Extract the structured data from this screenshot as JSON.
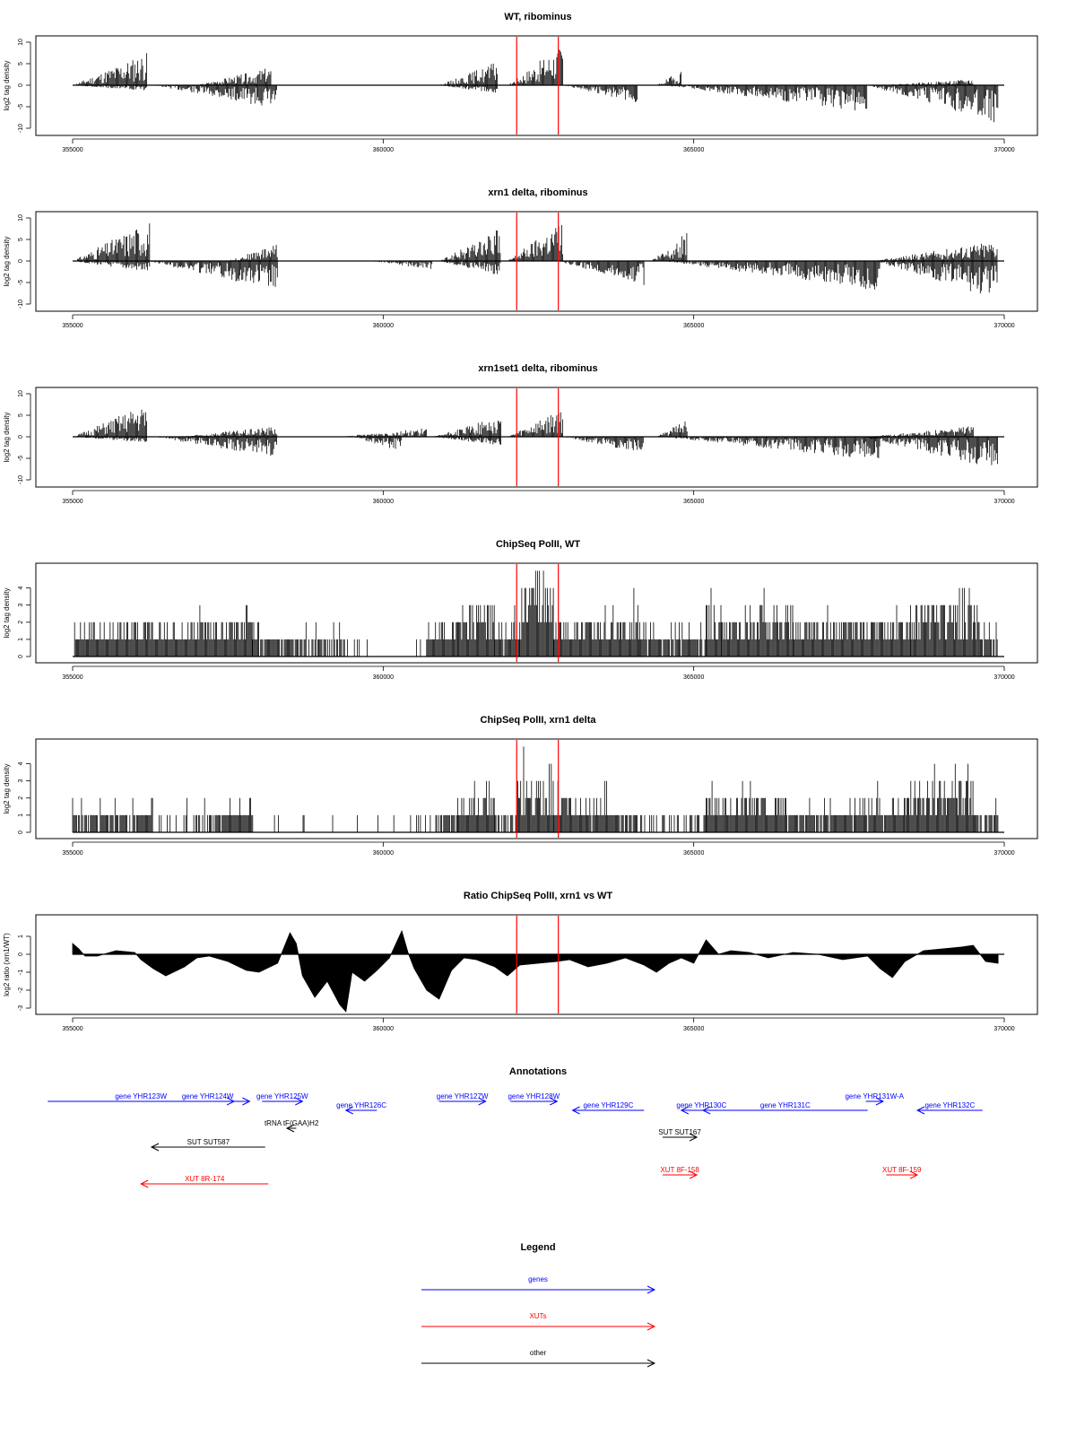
{
  "x_axis": {
    "range": [
      355000,
      370000
    ],
    "ticks": [
      355000,
      360000,
      365000,
      370000
    ]
  },
  "chart_data": [
    {
      "type": "bar",
      "title": "WT, ribominus",
      "ylabel": "log2 tag density",
      "ylim": [
        -10,
        10
      ],
      "yticks": [
        -10,
        -5,
        0,
        5,
        10
      ],
      "grid": false,
      "marker_lines_x": [
        362150,
        362820
      ],
      "marker_color": "#ff0000",
      "segments": [
        {
          "x": [
            355000,
            356200
          ],
          "y": [
            0,
            5.5
          ],
          "seed": 11
        },
        {
          "x": [
            355000,
            356200
          ],
          "y": [
            0,
            -1
          ],
          "seed": 12
        },
        {
          "x": [
            356300,
            358300
          ],
          "y": [
            0,
            -4
          ],
          "seed": 13
        },
        {
          "x": [
            357000,
            358200
          ],
          "y": [
            0,
            3
          ],
          "seed": 14
        },
        {
          "x": [
            360900,
            361850
          ],
          "y": [
            0,
            4
          ],
          "seed": 15
        },
        {
          "x": [
            360900,
            361850
          ],
          "y": [
            0,
            -1.5
          ],
          "seed": 16
        },
        {
          "x": [
            362000,
            362900
          ],
          "y": [
            0,
            7
          ],
          "seed": 17
        },
        {
          "x": [
            362900,
            364100
          ],
          "y": [
            0,
            -3
          ],
          "seed": 18
        },
        {
          "x": [
            364400,
            364800
          ],
          "y": [
            0,
            2.5
          ],
          "seed": 19
        },
        {
          "x": [
            364500,
            367800
          ],
          "y": [
            0,
            -4.5
          ],
          "seed": 20
        },
        {
          "x": [
            367800,
            369900
          ],
          "y": [
            0,
            -6.5
          ],
          "seed": 21
        },
        {
          "x": [
            368000,
            369500
          ],
          "y": [
            0,
            1
          ],
          "seed": 22
        }
      ]
    },
    {
      "type": "bar",
      "title": "xrn1 delta, ribominus",
      "ylabel": "log2 tag density",
      "ylim": [
        -10,
        10
      ],
      "yticks": [
        -10,
        -5,
        0,
        5,
        10
      ],
      "grid": false,
      "marker_lines_x": [
        362150,
        362820
      ],
      "marker_color": "#ff0000",
      "segments": [
        {
          "x": [
            355000,
            356250
          ],
          "y": [
            0,
            7
          ],
          "seed": 31
        },
        {
          "x": [
            355000,
            356250
          ],
          "y": [
            0,
            -2
          ],
          "seed": 32
        },
        {
          "x": [
            356200,
            358300
          ],
          "y": [
            0,
            -5
          ],
          "seed": 33
        },
        {
          "x": [
            357500,
            358300
          ],
          "y": [
            0,
            3
          ],
          "seed": 34
        },
        {
          "x": [
            359800,
            360800
          ],
          "y": [
            0,
            -1.5
          ],
          "seed": 35
        },
        {
          "x": [
            360900,
            361900
          ],
          "y": [
            0,
            5.5
          ],
          "seed": 36
        },
        {
          "x": [
            360900,
            361900
          ],
          "y": [
            0,
            -2.5
          ],
          "seed": 37
        },
        {
          "x": [
            362000,
            362900
          ],
          "y": [
            0,
            7
          ],
          "seed": 38
        },
        {
          "x": [
            362800,
            364200
          ],
          "y": [
            0,
            -4
          ],
          "seed": 39
        },
        {
          "x": [
            364300,
            364900
          ],
          "y": [
            0,
            5
          ],
          "seed": 40
        },
        {
          "x": [
            364500,
            368000
          ],
          "y": [
            0,
            -5
          ],
          "seed": 41
        },
        {
          "x": [
            367900,
            369900
          ],
          "y": [
            0,
            3.5
          ],
          "seed": 42
        },
        {
          "x": [
            367900,
            369900
          ],
          "y": [
            0,
            -6.5
          ],
          "seed": 43
        }
      ]
    },
    {
      "type": "bar",
      "title": "xrn1set1 delta, ribominus",
      "ylabel": "log2 tag density",
      "ylim": [
        -10,
        10
      ],
      "yticks": [
        -10,
        -5,
        0,
        5,
        10
      ],
      "grid": false,
      "marker_lines_x": [
        362150,
        362820
      ],
      "marker_color": "#ff0000",
      "segments": [
        {
          "x": [
            355000,
            356200
          ],
          "y": [
            0,
            5.5
          ],
          "seed": 51
        },
        {
          "x": [
            355000,
            356200
          ],
          "y": [
            0,
            -1
          ],
          "seed": 52
        },
        {
          "x": [
            356300,
            358300
          ],
          "y": [
            0,
            -3.5
          ],
          "seed": 53
        },
        {
          "x": [
            356700,
            358300
          ],
          "y": [
            0,
            1.8
          ],
          "seed": 54
        },
        {
          "x": [
            359500,
            360300
          ],
          "y": [
            0,
            -2.5
          ],
          "seed": 55
        },
        {
          "x": [
            359300,
            360700
          ],
          "y": [
            0,
            1.5
          ],
          "seed": 56
        },
        {
          "x": [
            360800,
            361900
          ],
          "y": [
            0,
            3.5
          ],
          "seed": 57
        },
        {
          "x": [
            360800,
            361900
          ],
          "y": [
            0,
            -1.5
          ],
          "seed": 58
        },
        {
          "x": [
            362000,
            362900
          ],
          "y": [
            0,
            5
          ],
          "seed": 59
        },
        {
          "x": [
            362900,
            364200
          ],
          "y": [
            0,
            -3
          ],
          "seed": 60
        },
        {
          "x": [
            364400,
            364900
          ],
          "y": [
            0,
            3
          ],
          "seed": 61
        },
        {
          "x": [
            364500,
            368000
          ],
          "y": [
            0,
            -4
          ],
          "seed": 62
        },
        {
          "x": [
            367700,
            369900
          ],
          "y": [
            0,
            -5.5
          ],
          "seed": 63
        },
        {
          "x": [
            367800,
            369500
          ],
          "y": [
            0,
            1.8
          ],
          "seed": 64
        }
      ]
    },
    {
      "type": "bar",
      "title": "ChipSeq PolII, WT",
      "ylabel": "log2 tag density",
      "ylim": [
        0,
        4.5
      ],
      "yticks": [
        0,
        1,
        2,
        3,
        4
      ],
      "grid": false,
      "marker_lines_x": [
        362150,
        362820
      ],
      "marker_color": "#ff0000",
      "segments": [
        {
          "x": [
            355000,
            357900
          ],
          "y": [
            1,
            1.6
          ],
          "seed": 71
        },
        {
          "x": [
            357900,
            360700
          ],
          "y": [
            1,
            0
          ],
          "seed": 72
        },
        {
          "x": [
            360700,
            361200
          ],
          "y": [
            1,
            1.3
          ],
          "seed": 73
        },
        {
          "x": [
            361200,
            361800
          ],
          "y": [
            1.8,
            2.2
          ],
          "seed": 74
        },
        {
          "x": [
            361800,
            362200
          ],
          "y": [
            1,
            1.3
          ],
          "seed": 75
        },
        {
          "x": [
            362200,
            362750
          ],
          "y": [
            2.8,
            3.5
          ],
          "seed": 76
        },
        {
          "x": [
            362750,
            364100
          ],
          "y": [
            1.4,
            1.6
          ],
          "seed": 77
        },
        {
          "x": [
            364100,
            365200
          ],
          "y": [
            1,
            1
          ],
          "seed": 78
        },
        {
          "x": [
            365200,
            365450
          ],
          "y": [
            2,
            2.2
          ],
          "seed": 79
        },
        {
          "x": [
            365450,
            366600
          ],
          "y": [
            1.5,
            2
          ],
          "seed": 80
        },
        {
          "x": [
            366600,
            368500
          ],
          "y": [
            1.3,
            1.6
          ],
          "seed": 81
        },
        {
          "x": [
            368500,
            369600
          ],
          "y": [
            2,
            2.4
          ],
          "seed": 82
        },
        {
          "x": [
            369600,
            369900
          ],
          "y": [
            1,
            1
          ],
          "seed": 83
        }
      ]
    },
    {
      "type": "bar",
      "title": "ChipSeq PolII, xrn1 delta",
      "ylabel": "log2 tag density",
      "ylim": [
        0,
        4.5
      ],
      "yticks": [
        0,
        1,
        2,
        3,
        4
      ],
      "grid": false,
      "marker_lines_x": [
        362150,
        362820
      ],
      "marker_color": "#ff0000",
      "segments": [
        {
          "x": [
            355000,
            356300
          ],
          "y": [
            0.7,
            0.7
          ],
          "seed": 91
        },
        {
          "x": [
            356300,
            357200
          ],
          "y": [
            0.3,
            0.5
          ],
          "seed": 92
        },
        {
          "x": [
            357200,
            357900
          ],
          "y": [
            0.9,
            1.2
          ],
          "seed": 93
        },
        {
          "x": [
            357900,
            360800
          ],
          "y": [
            0,
            0
          ],
          "seed": 94
        },
        {
          "x": [
            360800,
            361200
          ],
          "y": [
            0.6,
            0.8
          ],
          "seed": 95
        },
        {
          "x": [
            361200,
            361800
          ],
          "y": [
            1.2,
            1.8
          ],
          "seed": 96
        },
        {
          "x": [
            361800,
            362150
          ],
          "y": [
            0.6,
            0.6
          ],
          "seed": 97
        },
        {
          "x": [
            362150,
            362750
          ],
          "y": [
            2.3,
            2.6
          ],
          "seed": 98
        },
        {
          "x": [
            362750,
            363200
          ],
          "y": [
            1.5,
            1.2
          ],
          "seed": 99
        },
        {
          "x": [
            363200,
            364100
          ],
          "y": [
            1.2,
            0.8
          ],
          "seed": 100
        },
        {
          "x": [
            364100,
            365200
          ],
          "y": [
            0.4,
            0.4
          ],
          "seed": 101
        },
        {
          "x": [
            365200,
            365500
          ],
          "y": [
            1.5,
            1.2
          ],
          "seed": 102
        },
        {
          "x": [
            365500,
            366500
          ],
          "y": [
            1.2,
            1.5
          ],
          "seed": 103
        },
        {
          "x": [
            366500,
            368400
          ],
          "y": [
            0.9,
            1.1
          ],
          "seed": 104
        },
        {
          "x": [
            368400,
            369500
          ],
          "y": [
            1.8,
            2.3
          ],
          "seed": 105
        },
        {
          "x": [
            369500,
            369900
          ],
          "y": [
            1,
            0.6
          ],
          "seed": 106
        }
      ]
    },
    {
      "type": "area",
      "title": "Ratio ChipSeq PolII, xrn1 vs WT",
      "ylabel": "log2 ratio (xrn1/WT)",
      "ylim": [
        -3,
        1.5
      ],
      "yticks": [
        -3,
        -2,
        -1,
        0,
        1
      ],
      "grid": false,
      "marker_lines_x": [
        362150,
        362820
      ],
      "marker_color": "#ff0000",
      "x": [
        355000,
        355100,
        355200,
        355400,
        355700,
        356000,
        356100,
        356300,
        356500,
        356800,
        357000,
        357200,
        357500,
        357800,
        358000,
        358300,
        358500,
        358600,
        358700,
        358900,
        359100,
        359300,
        359400,
        359500,
        359700,
        359900,
        360100,
        360300,
        360400,
        360500,
        360700,
        360900,
        361100,
        361300,
        361500,
        361800,
        362000,
        362200,
        362500,
        362800,
        363000,
        363300,
        363600,
        363900,
        364200,
        364400,
        364600,
        364800,
        365000,
        365200,
        365400,
        365600,
        365900,
        366200,
        366600,
        367000,
        367400,
        367800,
        368000,
        368200,
        368400,
        368700,
        369000,
        369300,
        369500,
        369700,
        369900
      ],
      "y": [
        0.6,
        0.3,
        -0.1,
        -0.1,
        0.2,
        0.1,
        -0.3,
        -0.8,
        -1.2,
        -0.7,
        -0.2,
        -0.1,
        -0.4,
        -0.9,
        -1.0,
        -0.5,
        1.2,
        0.6,
        -1.2,
        -2.4,
        -1.5,
        -2.8,
        -3.2,
        -1.0,
        -1.5,
        -0.9,
        -0.2,
        1.3,
        0.1,
        -0.8,
        -2.0,
        -2.5,
        -0.9,
        -0.2,
        -0.3,
        -0.7,
        -1.2,
        -0.6,
        -0.5,
        -0.4,
        -0.3,
        -0.7,
        -0.5,
        -0.2,
        -0.6,
        -1.0,
        -0.5,
        -0.2,
        -0.5,
        0.8,
        0.0,
        0.2,
        0.1,
        -0.2,
        0.1,
        0.0,
        -0.3,
        -0.1,
        -0.8,
        -1.3,
        -0.4,
        0.2,
        0.3,
        0.4,
        0.5,
        -0.4,
        -0.5
      ]
    }
  ],
  "annotations": {
    "title": "Annotations",
    "items": [
      {
        "label": "gene YHR123W",
        "x1": 354600,
        "x2": 357600,
        "row": 0,
        "dir": "right",
        "kind": "gene"
      },
      {
        "label": "gene YHR124W",
        "x1": 356500,
        "x2": 357850,
        "row": 0,
        "dir": "right",
        "kind": "gene"
      },
      {
        "label": "gene YHR125W",
        "x1": 358050,
        "x2": 358700,
        "row": 0,
        "dir": "right",
        "kind": "gene"
      },
      {
        "label": "gene YHR126C",
        "x1": 359400,
        "x2": 359900,
        "row": 1,
        "dir": "left",
        "kind": "gene"
      },
      {
        "label": "gene YHR127W",
        "x1": 360900,
        "x2": 361650,
        "row": 0,
        "dir": "right",
        "kind": "gene"
      },
      {
        "label": "gene YHR128W",
        "x1": 362050,
        "x2": 362800,
        "row": 0,
        "dir": "right",
        "kind": "gene"
      },
      {
        "label": "gene YHR129C",
        "x1": 363050,
        "x2": 364200,
        "row": 1,
        "dir": "left",
        "kind": "gene"
      },
      {
        "label": "gene YHR130C",
        "x1": 364800,
        "x2": 365450,
        "row": 1,
        "dir": "left",
        "kind": "gene"
      },
      {
        "label": "gene YHR131C",
        "x1": 365150,
        "x2": 367800,
        "row": 1,
        "dir": "left",
        "kind": "gene"
      },
      {
        "label": "gene YHR131W-A",
        "x1": 367770,
        "x2": 368050,
        "row": 0,
        "dir": "right",
        "kind": "gene"
      },
      {
        "label": "gene YHR132C",
        "x1": 368600,
        "x2": 369650,
        "row": 1,
        "dir": "left",
        "kind": "gene"
      },
      {
        "label": "tRNA tF(GAA)H2",
        "x1": 358450,
        "x2": 358600,
        "row": 2,
        "dir": "left",
        "kind": "other"
      },
      {
        "label": "SUT SUT587",
        "x1": 356270,
        "x2": 358100,
        "row": 3,
        "dir": "left",
        "kind": "other"
      },
      {
        "label": "SUT SUT167",
        "x1": 364500,
        "x2": 365050,
        "row": 4,
        "dir": "right",
        "kind": "other"
      },
      {
        "label": "XUT 8R-174",
        "x1": 356100,
        "x2": 358150,
        "row": 6,
        "dir": "left",
        "kind": "xut"
      },
      {
        "label": "XUT 8F-158",
        "x1": 364500,
        "x2": 365050,
        "row": 5,
        "dir": "right",
        "kind": "xut"
      },
      {
        "label": "XUT 8F-159",
        "x1": 368100,
        "x2": 368600,
        "row": 5,
        "dir": "right",
        "kind": "xut"
      }
    ]
  },
  "legend": {
    "title": "Legend",
    "items": [
      {
        "label": "genes",
        "color": "#0000ff"
      },
      {
        "label": "XUTs",
        "color": "#ff0000"
      },
      {
        "label": "other",
        "color": "#000000"
      }
    ]
  },
  "colors": {
    "gene": "#0000ff",
    "xut": "#ff0000",
    "other": "#000000",
    "marker": "#ff0000"
  }
}
